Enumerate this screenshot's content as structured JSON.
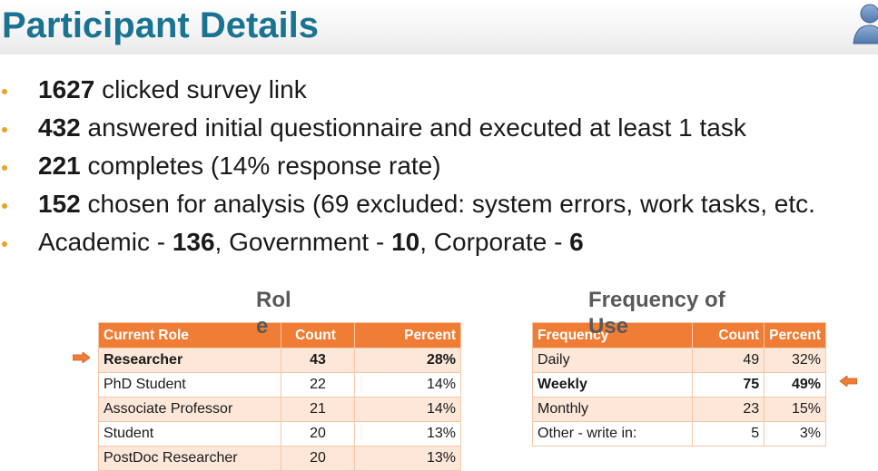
{
  "slide": {
    "title": "Participant Details",
    "accent_color": "#ef7d35",
    "title_color": "#1a7392"
  },
  "bullets": [
    {
      "bold": "1627",
      "text": " clicked survey link"
    },
    {
      "bold": "432",
      "text": " answered initial questionnaire and executed at least 1 task"
    },
    {
      "bold": "221",
      "text": " completes (14% response rate)"
    },
    {
      "bold": "152",
      "text": " chosen for analysis (69 excluded: system errors, work tasks, etc."
    }
  ],
  "affiliation": {
    "academic_label": "Academic - ",
    "academic_count": "136",
    "government_label": ", Government - ",
    "government_count": "10",
    "corporate_label": ", Corporate - ",
    "corporate_count": "6"
  },
  "role_table": {
    "heading_line1": "Rol",
    "heading_line2": "e",
    "columns": [
      "Current Role",
      "Count",
      "Percent"
    ],
    "rows": [
      {
        "role": "Researcher",
        "count": "43",
        "percent": "28%"
      },
      {
        "role": "PhD Student",
        "count": "22",
        "percent": "14%"
      },
      {
        "role": "Associate Professor",
        "count": "21",
        "percent": "14%"
      },
      {
        "role": "Student",
        "count": "20",
        "percent": "13%"
      },
      {
        "role": "PostDoc Researcher",
        "count": "20",
        "percent": "13%"
      }
    ]
  },
  "frequency_table": {
    "heading_line1": "Frequency of",
    "heading_line2": "Use",
    "columns": [
      "Frequency",
      "Count",
      "Percent"
    ],
    "rows": [
      {
        "frequency": "Daily",
        "count": "49",
        "percent": "32%"
      },
      {
        "frequency": "Weekly",
        "count": "75",
        "percent": "49%"
      },
      {
        "frequency": "Monthly",
        "count": "23",
        "percent": "15%"
      },
      {
        "frequency": "Other - write in:",
        "count": "5",
        "percent": "3%"
      }
    ]
  },
  "icons": {
    "user": "user-avatar-icon",
    "arrow_right": "arrow-right-icon",
    "arrow_left": "arrow-left-icon"
  }
}
